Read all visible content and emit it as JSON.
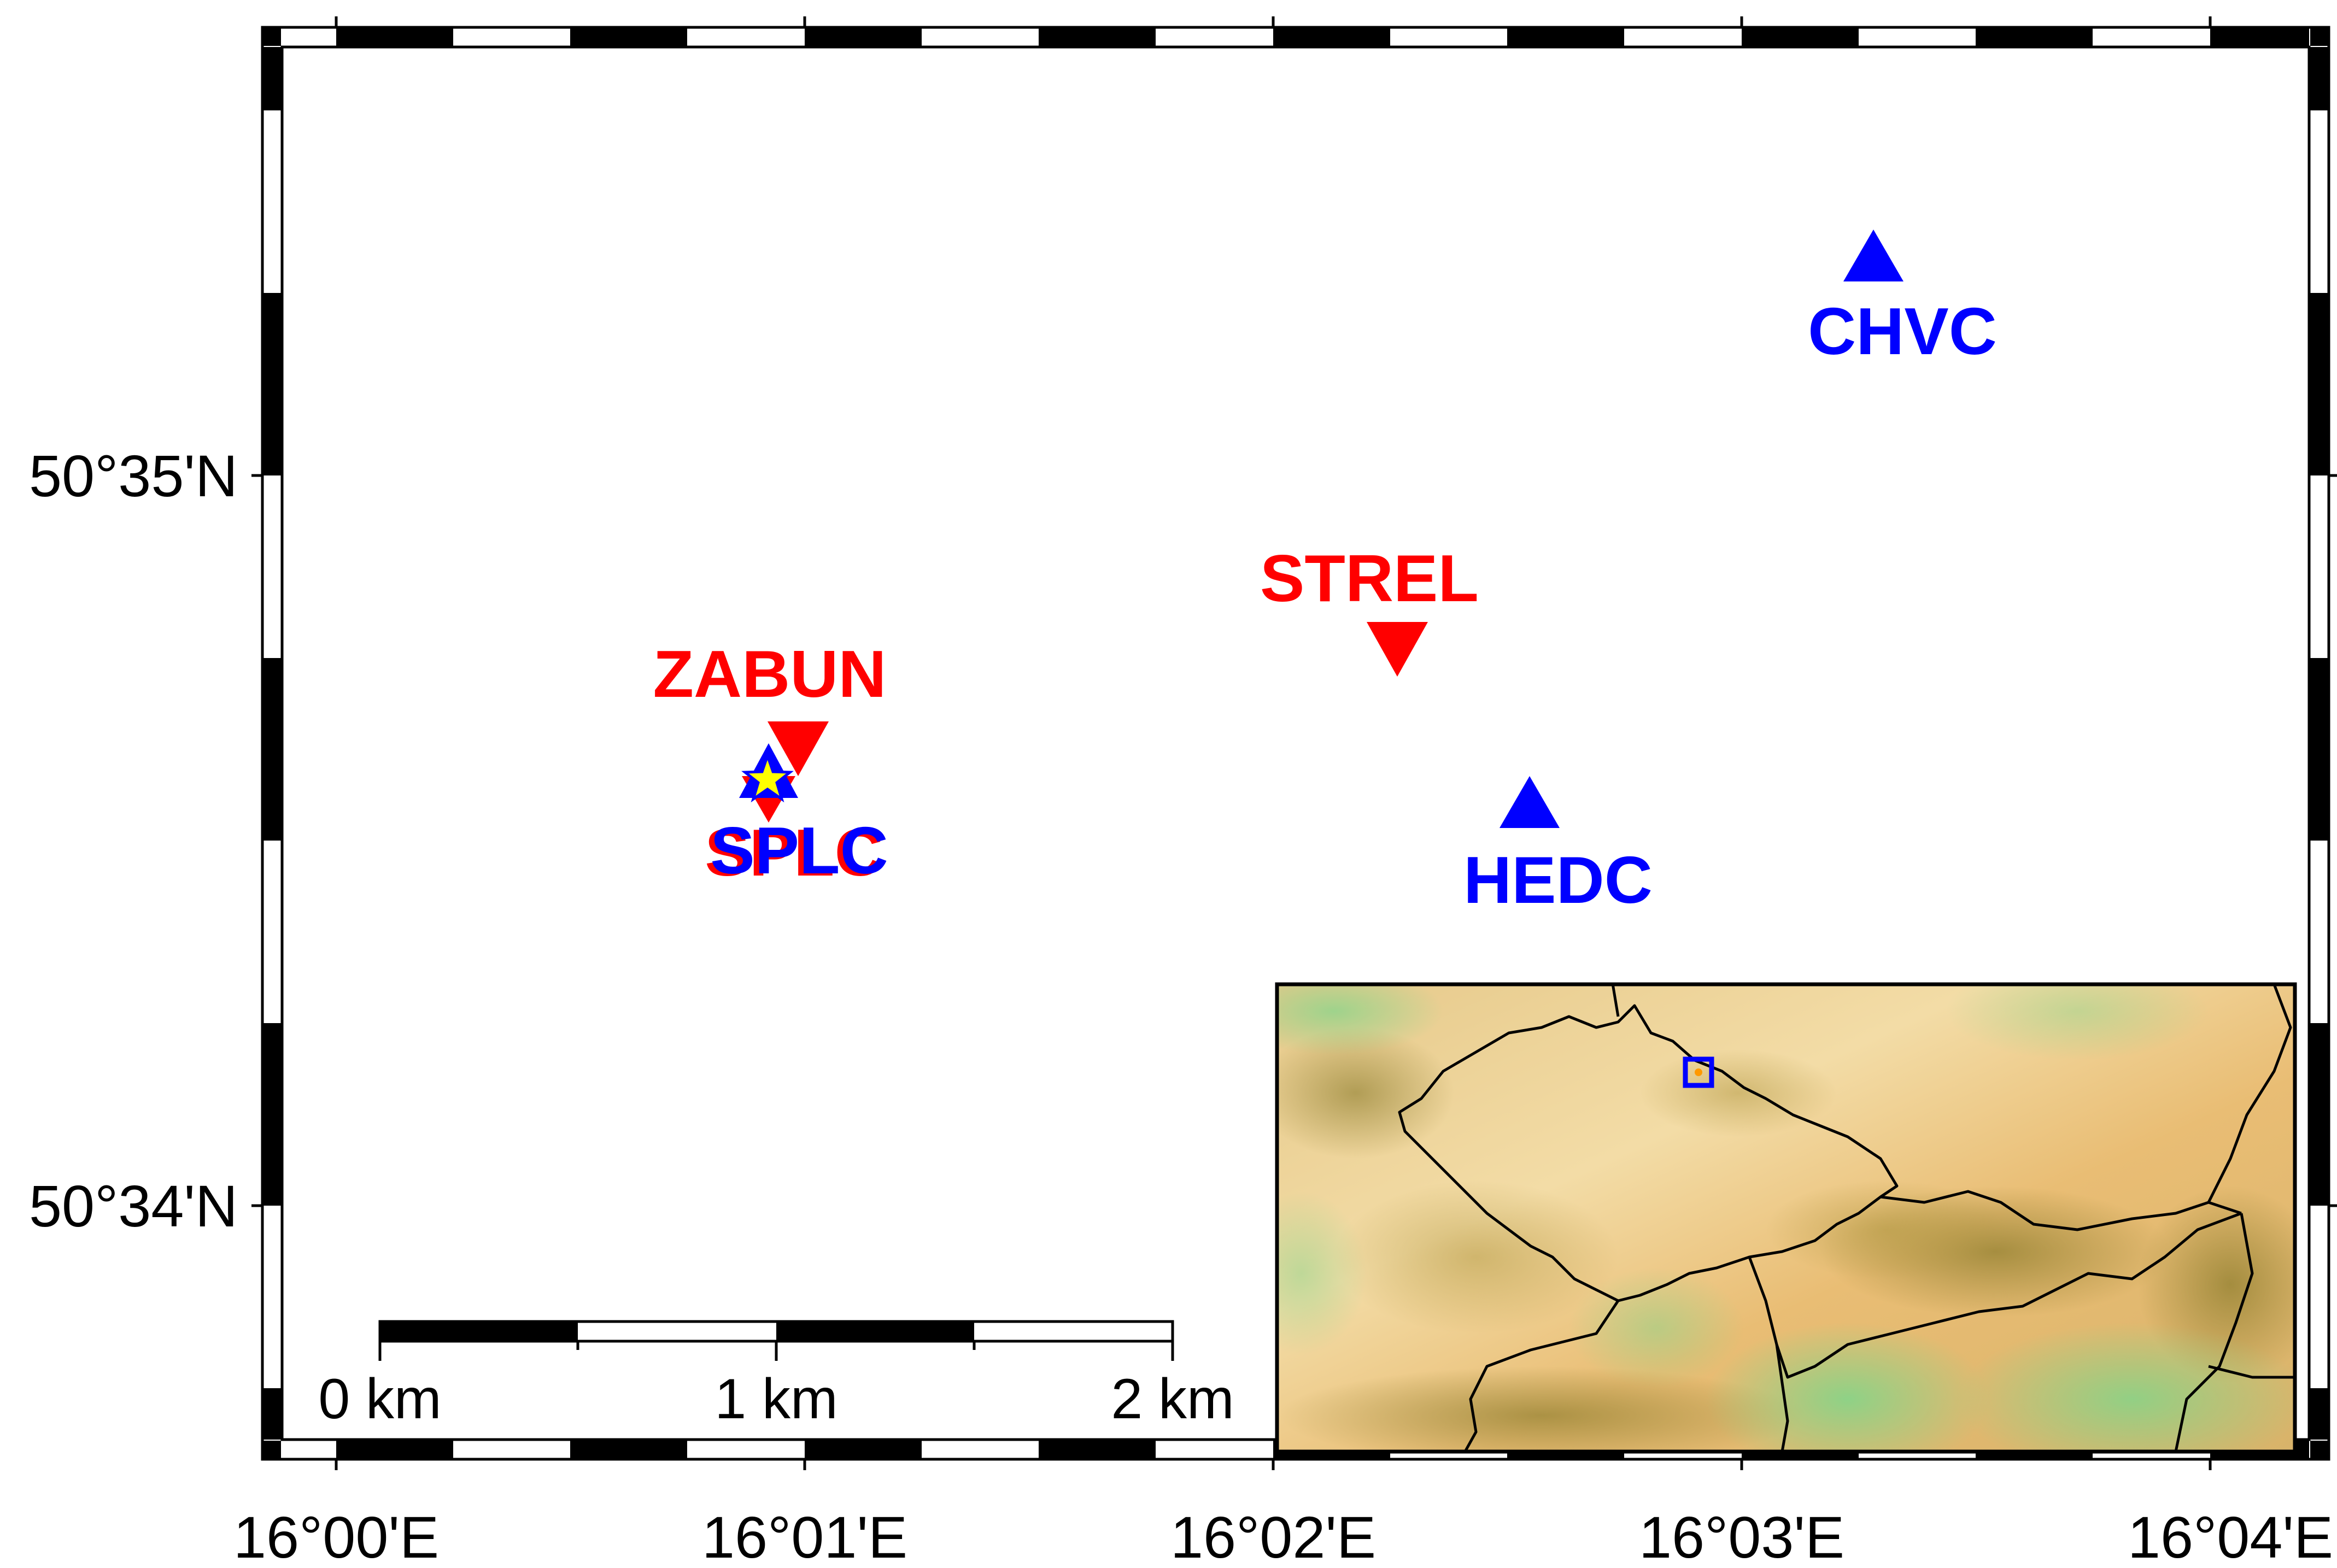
{
  "map": {
    "lon_labels": [
      "16°00'E",
      "16°01'E",
      "16°02'E",
      "16°03'E",
      "16°04'E"
    ],
    "lat_labels": [
      "50°35'N",
      "50°34'N"
    ],
    "colors": {
      "station_blue": "#0000ff",
      "station_red": "#ff0000",
      "epicenter": "#ffff00",
      "frame": "#000000"
    }
  },
  "stations": {
    "chvc": {
      "label": "CHVC",
      "symbol": "triangle-up-icon",
      "color": "#0000ff"
    },
    "hedc": {
      "label": "HEDC",
      "symbol": "triangle-up-icon",
      "color": "#0000ff"
    },
    "strel": {
      "label": "STREL",
      "symbol": "triangle-down-icon",
      "color": "#ff0000"
    },
    "zabun": {
      "label": "ZABUN",
      "symbol": "triangle-down-icon",
      "color": "#ff0000"
    },
    "splc_red": {
      "label": "SPLC",
      "symbol": "triangle-down-icon",
      "color": "#ff0000"
    },
    "splc_blue": {
      "label": "SPLC",
      "symbol": "triangle-up-icon",
      "color": "#0000ff"
    },
    "epicenter": {
      "symbol": "star-icon",
      "color": "#ffff00"
    }
  },
  "scale_bar": {
    "labels": [
      "0 km",
      "1 km",
      "2 km"
    ]
  },
  "inset": {
    "description_icon": "relief-map-icon",
    "marker": "square-marker-icon",
    "marker_color": "#0000ff"
  }
}
